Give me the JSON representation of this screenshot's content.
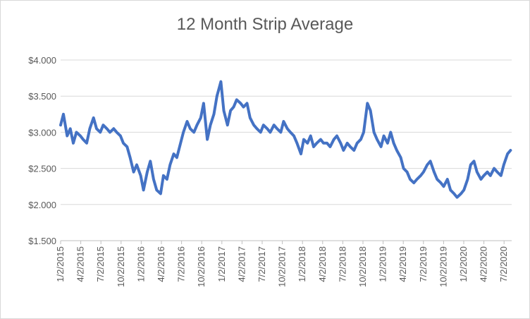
{
  "chart_data": {
    "type": "line",
    "title": "12 Month Strip Average",
    "xlabel": "",
    "ylabel": "",
    "ylim": [
      1.5,
      4.0
    ],
    "y_ticks": [
      1.5,
      2.0,
      2.5,
      3.0,
      3.5,
      4.0
    ],
    "y_tick_labels": [
      "$1.500",
      "$2.000",
      "$2.500",
      "$3.000",
      "$3.500",
      "$4.000"
    ],
    "x_tick_labels": [
      "1/2/2015",
      "4/2/2015",
      "7/2/2015",
      "10/2/2015",
      "1/2/2016",
      "4/2/2016",
      "7/2/2016",
      "10/2/2016",
      "1/2/2017",
      "4/2/2017",
      "7/2/2017",
      "10/2/2017",
      "1/2/2018",
      "4/2/2018",
      "7/2/2018",
      "10/2/2018",
      "1/2/2019",
      "4/2/2019",
      "7/2/2019",
      "10/2/2019",
      "1/2/2020",
      "4/2/2020",
      "7/2/2020"
    ],
    "grid": "horizontal",
    "legend": "none",
    "line_color": "#4472c4",
    "series": [
      {
        "x": [
          "2015-01-02",
          "2015-01-15",
          "2015-02-01",
          "2015-02-15",
          "2015-03-01",
          "2015-03-15",
          "2015-04-02",
          "2015-04-15",
          "2015-05-01",
          "2015-05-15",
          "2015-06-01",
          "2015-06-15",
          "2015-07-02",
          "2015-07-15",
          "2015-08-01",
          "2015-08-15",
          "2015-09-01",
          "2015-09-15",
          "2015-10-02",
          "2015-10-15",
          "2015-11-01",
          "2015-11-15",
          "2015-12-01",
          "2015-12-15",
          "2016-01-02",
          "2016-01-15",
          "2016-02-01",
          "2016-02-15",
          "2016-03-01",
          "2016-03-15",
          "2016-04-02",
          "2016-04-15",
          "2016-05-01",
          "2016-05-15",
          "2016-06-01",
          "2016-06-15",
          "2016-07-02",
          "2016-07-15",
          "2016-08-01",
          "2016-08-15",
          "2016-09-01",
          "2016-09-15",
          "2016-10-02",
          "2016-10-15",
          "2016-11-01",
          "2016-11-15",
          "2016-12-01",
          "2016-12-15",
          "2017-01-02",
          "2017-01-15",
          "2017-02-01",
          "2017-02-15",
          "2017-03-01",
          "2017-03-15",
          "2017-04-02",
          "2017-04-15",
          "2017-05-01",
          "2017-05-15",
          "2017-06-01",
          "2017-06-15",
          "2017-07-02",
          "2017-07-15",
          "2017-08-01",
          "2017-08-15",
          "2017-09-01",
          "2017-09-15",
          "2017-10-02",
          "2017-10-15",
          "2017-11-01",
          "2017-11-15",
          "2017-12-01",
          "2017-12-15",
          "2018-01-02",
          "2018-01-15",
          "2018-02-01",
          "2018-02-15",
          "2018-03-01",
          "2018-03-15",
          "2018-04-02",
          "2018-04-15",
          "2018-05-01",
          "2018-05-15",
          "2018-06-01",
          "2018-06-15",
          "2018-07-02",
          "2018-07-15",
          "2018-08-01",
          "2018-08-15",
          "2018-09-01",
          "2018-09-15",
          "2018-10-02",
          "2018-10-15",
          "2018-11-01",
          "2018-11-15",
          "2018-12-01",
          "2018-12-15",
          "2019-01-02",
          "2019-01-15",
          "2019-02-01",
          "2019-02-15",
          "2019-03-01",
          "2019-03-15",
          "2019-04-02",
          "2019-04-15",
          "2019-05-01",
          "2019-05-15",
          "2019-06-01",
          "2019-06-15",
          "2019-07-02",
          "2019-07-15",
          "2019-08-01",
          "2019-08-15",
          "2019-09-01",
          "2019-09-15",
          "2019-10-02",
          "2019-10-15",
          "2019-11-01",
          "2019-11-15",
          "2019-12-01",
          "2019-12-15",
          "2020-01-02",
          "2020-01-15",
          "2020-02-01",
          "2020-02-15",
          "2020-03-01",
          "2020-03-15",
          "2020-04-02",
          "2020-04-15",
          "2020-05-01",
          "2020-05-15",
          "2020-06-01",
          "2020-06-15",
          "2020-07-02",
          "2020-07-15",
          "2020-08-01",
          "2020-08-15"
        ],
        "values": [
          3.1,
          3.25,
          2.95,
          3.05,
          2.85,
          3.0,
          2.95,
          2.9,
          2.85,
          3.05,
          3.2,
          3.05,
          3.0,
          3.1,
          3.05,
          3.0,
          3.05,
          3.0,
          2.95,
          2.85,
          2.8,
          2.65,
          2.45,
          2.55,
          2.4,
          2.2,
          2.45,
          2.6,
          2.35,
          2.2,
          2.15,
          2.4,
          2.35,
          2.55,
          2.7,
          2.65,
          2.85,
          3.0,
          3.15,
          3.05,
          3.0,
          3.1,
          3.2,
          3.4,
          2.9,
          3.1,
          3.25,
          3.5,
          3.7,
          3.3,
          3.1,
          3.3,
          3.35,
          3.45,
          3.4,
          3.35,
          3.4,
          3.2,
          3.1,
          3.05,
          3.0,
          3.1,
          3.05,
          3.0,
          3.1,
          3.05,
          3.0,
          3.15,
          3.05,
          3.0,
          2.95,
          2.85,
          2.7,
          2.9,
          2.85,
          2.95,
          2.8,
          2.85,
          2.9,
          2.85,
          2.85,
          2.8,
          2.9,
          2.95,
          2.85,
          2.75,
          2.85,
          2.8,
          2.75,
          2.85,
          2.9,
          3.0,
          3.4,
          3.3,
          3.0,
          2.9,
          2.8,
          2.95,
          2.85,
          3.0,
          2.85,
          2.75,
          2.65,
          2.5,
          2.45,
          2.35,
          2.3,
          2.35,
          2.4,
          2.45,
          2.55,
          2.6,
          2.45,
          2.35,
          2.3,
          2.25,
          2.35,
          2.2,
          2.15,
          2.1,
          2.15,
          2.2,
          2.35,
          2.55,
          2.6,
          2.45,
          2.35,
          2.4,
          2.45,
          2.4,
          2.5,
          2.45,
          2.4,
          2.55,
          2.7,
          2.75
        ]
      }
    ]
  }
}
